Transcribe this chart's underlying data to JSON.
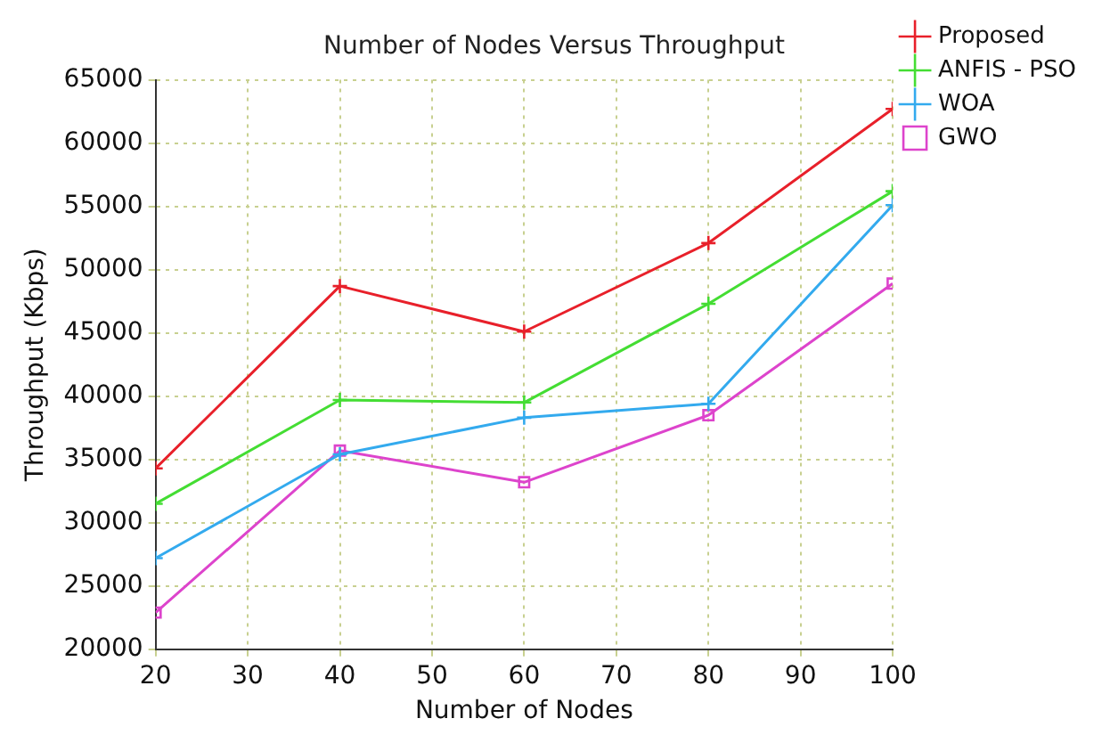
{
  "chart_data": {
    "type": "line",
    "title": "Number of Nodes Versus Throughput",
    "xlabel": "Number of Nodes",
    "ylabel": "Throughput (Kbps)",
    "x": [
      20,
      40,
      60,
      80,
      100
    ],
    "xlim": [
      20,
      100
    ],
    "xticks": [
      20,
      30,
      40,
      50,
      60,
      70,
      80,
      90,
      100
    ],
    "ylim": [
      20000,
      65000
    ],
    "yticks": [
      20000,
      25000,
      30000,
      35000,
      40000,
      45000,
      50000,
      55000,
      60000,
      65000
    ],
    "grid": true,
    "legend": "top right",
    "line_style": "solid",
    "series": [
      {
        "name": "Proposed",
        "color": "#e8202a",
        "marker": "cross",
        "values": [
          34300,
          48700,
          45100,
          52100,
          62700
        ]
      },
      {
        "name": "ANFIS - PSO",
        "color": "#44dd33",
        "marker": "cross",
        "values": [
          31500,
          39700,
          39500,
          47300,
          56200
        ]
      },
      {
        "name": "WOA",
        "color": "#33aaee",
        "marker": "cross",
        "values": [
          27200,
          35400,
          38300,
          39400,
          55100
        ]
      },
      {
        "name": "GWO",
        "color": "#dd44cc",
        "marker": "square",
        "values": [
          22900,
          35700,
          33200,
          38500,
          48900
        ]
      }
    ]
  }
}
